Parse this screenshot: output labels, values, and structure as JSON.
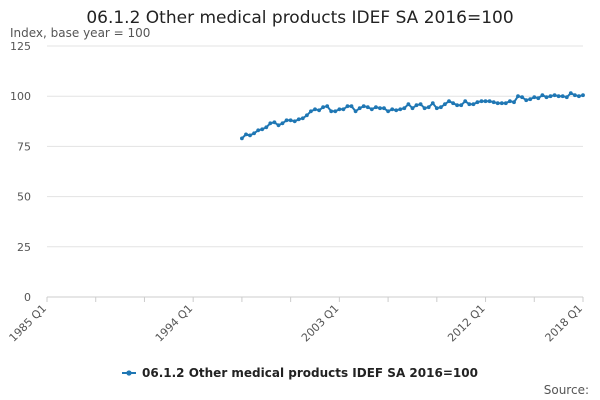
{
  "title": "06.1.2 Other medical products IDEF SA 2016=100",
  "source_label": "Source:",
  "chart_data": {
    "type": "line",
    "ylabel": "Index, base year = 100",
    "ylim": [
      0,
      125
    ],
    "yticks": [
      0,
      25,
      50,
      75,
      100,
      125
    ],
    "xlim": [
      1985.0,
      2018.0
    ],
    "xticks": [
      {
        "label": "1985 Q1",
        "value": 1985.0
      },
      {
        "label": "1994 Q1",
        "value": 1994.0
      },
      {
        "label": "2003 Q1",
        "value": 2003.0
      },
      {
        "label": "2012 Q1",
        "value": 2012.0
      },
      {
        "label": "2018 Q1",
        "value": 2018.0
      }
    ],
    "grid": true,
    "legend_position": "bottom",
    "series": [
      {
        "name": "06.1.2 Other medical products IDEF SA 2016=100",
        "color": "#1f77b4",
        "x": [
          1997.0,
          1997.25,
          1997.5,
          1997.75,
          1998.0,
          1998.25,
          1998.5,
          1998.75,
          1999.0,
          1999.25,
          1999.5,
          1999.75,
          2000.0,
          2000.25,
          2000.5,
          2000.75,
          2001.0,
          2001.25,
          2001.5,
          2001.75,
          2002.0,
          2002.25,
          2002.5,
          2002.75,
          2003.0,
          2003.25,
          2003.5,
          2003.75,
          2004.0,
          2004.25,
          2004.5,
          2004.75,
          2005.0,
          2005.25,
          2005.5,
          2005.75,
          2006.0,
          2006.25,
          2006.5,
          2006.75,
          2007.0,
          2007.25,
          2007.5,
          2007.75,
          2008.0,
          2008.25,
          2008.5,
          2008.75,
          2009.0,
          2009.25,
          2009.5,
          2009.75,
          2010.0,
          2010.25,
          2010.5,
          2010.75,
          2011.0,
          2011.25,
          2011.5,
          2011.75,
          2012.0,
          2012.25,
          2012.5,
          2012.75,
          2013.0,
          2013.25,
          2013.5,
          2013.75,
          2014.0,
          2014.25,
          2014.5,
          2014.75,
          2015.0,
          2015.25,
          2015.5,
          2015.75,
          2016.0,
          2016.25,
          2016.5,
          2016.75,
          2017.0,
          2017.25,
          2017.5,
          2017.75,
          2018.0
        ],
        "values": [
          79,
          81,
          80.5,
          81.5,
          83,
          83.5,
          84.5,
          86.5,
          87,
          85.5,
          86.5,
          88,
          88,
          87.5,
          88.5,
          89,
          90.5,
          92.5,
          93.5,
          93,
          94.5,
          95,
          92.5,
          92.5,
          93.5,
          93.5,
          95,
          95,
          92.5,
          94,
          95,
          94.5,
          93.5,
          94.5,
          94,
          94,
          92.5,
          93.5,
          93,
          93.5,
          94,
          96,
          94,
          95.5,
          96,
          94,
          94.5,
          96.5,
          94,
          94.5,
          96,
          97.5,
          96.5,
          95.5,
          95.5,
          97.5,
          96,
          96,
          97,
          97.5,
          97.5,
          97.5,
          97,
          96.5,
          96.5,
          96.5,
          97.5,
          97,
          100,
          99.5,
          98,
          98.5,
          99.5,
          99,
          100.5,
          99.5,
          100,
          100.5,
          100,
          100,
          99.5,
          101.5,
          100.5,
          100,
          100.5
        ]
      }
    ]
  }
}
